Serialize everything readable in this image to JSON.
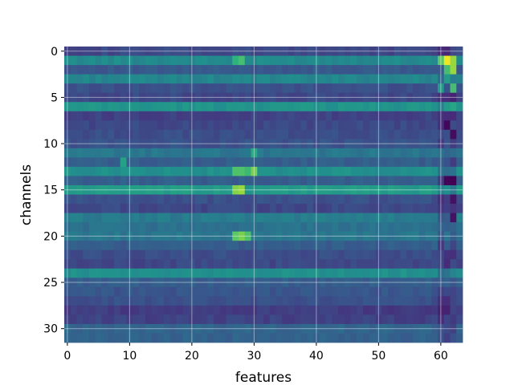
{
  "chart_data": {
    "type": "heatmap",
    "title": "",
    "xlabel": "features",
    "ylabel": "channels",
    "n_rows": 32,
    "n_cols": 64,
    "xlim": [
      -0.5,
      63.5
    ],
    "ylim": [
      31.5,
      -0.5
    ],
    "xticks": [
      0,
      10,
      20,
      30,
      40,
      50,
      60
    ],
    "yticks": [
      0,
      5,
      10,
      15,
      20,
      25,
      30
    ],
    "grid": true,
    "colormap": "viridis",
    "value_range": [
      0,
      1
    ],
    "row_levels": [
      0.22,
      0.48,
      0.28,
      0.46,
      0.25,
      0.22,
      0.52,
      0.2,
      0.22,
      0.24,
      0.26,
      0.4,
      0.3,
      0.5,
      0.3,
      0.55,
      0.25,
      0.22,
      0.42,
      0.38,
      0.4,
      0.3,
      0.24,
      0.22,
      0.5,
      0.3,
      0.27,
      0.25,
      0.18,
      0.2,
      0.33,
      0.32
    ],
    "hot_spots": [
      {
        "row": 1,
        "col": 61,
        "value": 0.98
      },
      {
        "row": 1,
        "col": 62,
        "value": 0.85
      },
      {
        "row": 1,
        "col": 60,
        "value": 0.75
      },
      {
        "row": 2,
        "col": 62,
        "value": 0.85
      },
      {
        "row": 2,
        "col": 61,
        "value": 0.7
      },
      {
        "row": 3,
        "col": 61,
        "value": 0.55
      },
      {
        "row": 4,
        "col": 62,
        "value": 0.7
      },
      {
        "row": 4,
        "col": 60,
        "value": 0.55
      },
      {
        "row": 6,
        "col": 61,
        "value": 0.55
      },
      {
        "row": 6,
        "col": 62,
        "value": 0.6
      },
      {
        "row": 1,
        "col": 27,
        "value": 0.65
      },
      {
        "row": 1,
        "col": 28,
        "value": 0.7
      },
      {
        "row": 13,
        "col": 27,
        "value": 0.72
      },
      {
        "row": 13,
        "col": 28,
        "value": 0.72
      },
      {
        "row": 13,
        "col": 29,
        "value": 0.68
      },
      {
        "row": 13,
        "col": 30,
        "value": 0.8
      },
      {
        "row": 15,
        "col": 27,
        "value": 0.82
      },
      {
        "row": 15,
        "col": 28,
        "value": 0.85
      },
      {
        "row": 20,
        "col": 27,
        "value": 0.75
      },
      {
        "row": 20,
        "col": 28,
        "value": 0.8
      },
      {
        "row": 20,
        "col": 29,
        "value": 0.72
      },
      {
        "row": 12,
        "col": 9,
        "value": 0.58
      },
      {
        "row": 11,
        "col": 30,
        "value": 0.62
      },
      {
        "row": 8,
        "col": 61,
        "value": 0.02
      },
      {
        "row": 9,
        "col": 62,
        "value": 0.03
      },
      {
        "row": 14,
        "col": 61,
        "value": 0.01
      },
      {
        "row": 14,
        "col": 62,
        "value": 0.0
      },
      {
        "row": 16,
        "col": 62,
        "value": 0.05
      },
      {
        "row": 18,
        "col": 62,
        "value": 0.05
      }
    ]
  }
}
